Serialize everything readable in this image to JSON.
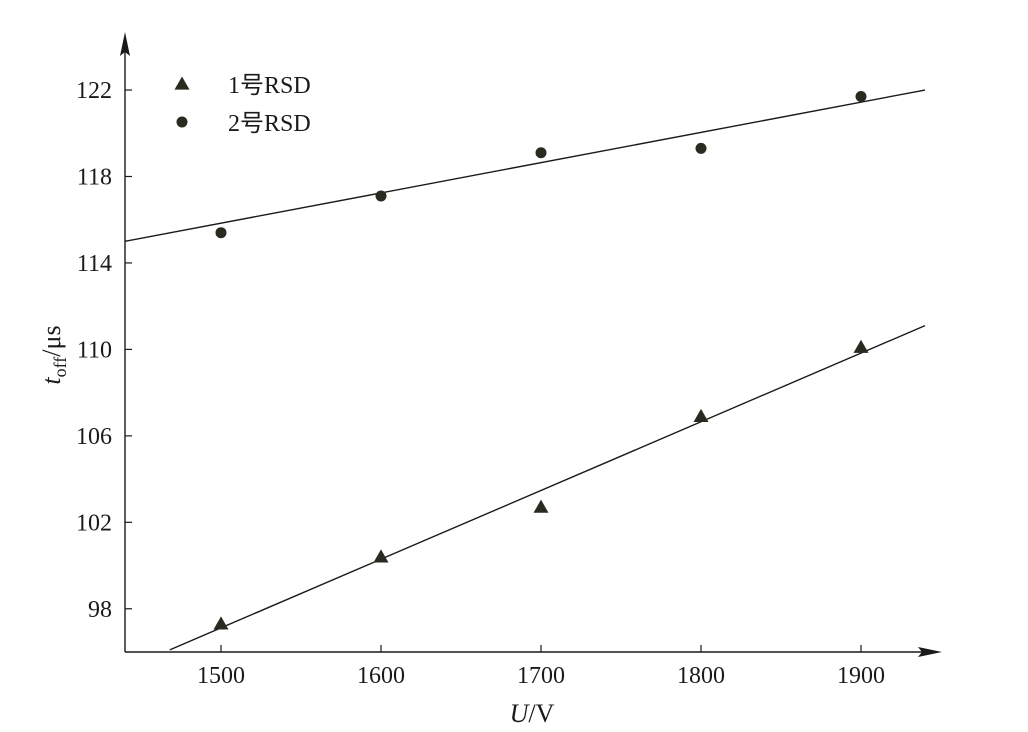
{
  "chart_data": {
    "type": "scatter",
    "title": "",
    "xlabel": {
      "var": "U",
      "unit": "/V"
    },
    "ylabel": {
      "var": "t",
      "sub": "off",
      "unit": "/μs"
    },
    "xlim": [
      1440,
      1940
    ],
    "ylim": [
      96.0,
      124.5
    ],
    "x_ticks": [
      1500,
      1600,
      1700,
      1800,
      1900
    ],
    "y_ticks": [
      98,
      102,
      106,
      110,
      114,
      118,
      122
    ],
    "grid": false,
    "legend_position": "top-left",
    "series": [
      {
        "name": "1号RSD",
        "marker": "triangle",
        "x": [
          1500,
          1600,
          1700,
          1800,
          1900
        ],
        "y": [
          97.3,
          100.4,
          102.7,
          106.9,
          110.1
        ],
        "fit_line": {
          "x": [
            1468,
            1940
          ],
          "y": [
            96.1,
            111.1
          ]
        }
      },
      {
        "name": "2号RSD",
        "marker": "circle",
        "x": [
          1500,
          1600,
          1700,
          1800,
          1900
        ],
        "y": [
          115.4,
          117.1,
          119.1,
          119.3,
          121.7
        ],
        "fit_line": {
          "x": [
            1440,
            1940
          ],
          "y": [
            115.0,
            122.0
          ]
        }
      }
    ]
  },
  "colors": {
    "ink": "#1a1a1a",
    "marker": "#2a2a20"
  }
}
